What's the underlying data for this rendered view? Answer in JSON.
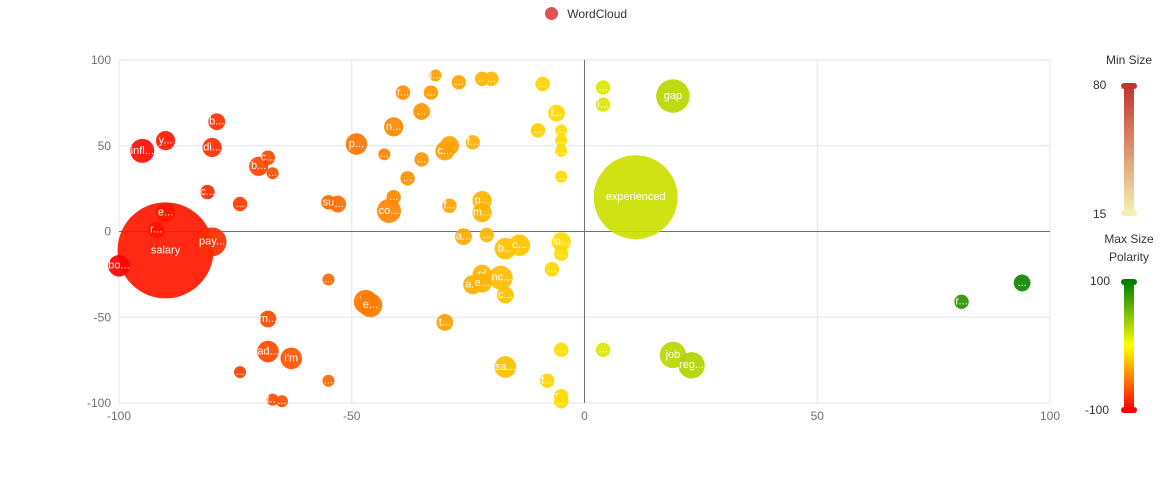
{
  "legend": {
    "label": "WordCloud",
    "color": "#e05252"
  },
  "visual_map": {
    "size": {
      "title_top": "Min Size",
      "title_bottom": "Max Size",
      "max_label": "80",
      "min_label": "15",
      "color_top": "#c23531",
      "color_bottom": "#f5f0b0"
    },
    "polarity": {
      "title": "Polarity",
      "max_label": "100",
      "min_label": "-100",
      "color_top": "#008000",
      "color_mid": "#ffff00",
      "color_bottom": "#ff0000"
    }
  },
  "chart_data": {
    "type": "scatter",
    "title": "",
    "xlim": [
      -100,
      100
    ],
    "ylim": [
      -100,
      100
    ],
    "x_ticks": [
      "-100",
      "-50",
      "0",
      "50",
      "100"
    ],
    "y_ticks": [
      "100",
      "50",
      "0",
      "-50",
      "-100"
    ],
    "grid": true,
    "legend_position": "top-center",
    "series": [
      {
        "name": "WordCloud",
        "points": [
          {
            "label": "salary",
            "x": -90,
            "y": -11,
            "size": 80
          },
          {
            "label": "experienced",
            "x": 11,
            "y": 20,
            "size": 70
          },
          {
            "label": "gap",
            "x": 19,
            "y": 79,
            "size": 28
          },
          {
            "label": "job",
            "x": 19,
            "y": -72,
            "size": 22
          },
          {
            "label": "reg...",
            "x": 23,
            "y": -78,
            "size": 22
          },
          {
            "label": "pay...",
            "x": -80,
            "y": -6,
            "size": 24
          },
          {
            "label": "infl...",
            "x": -95,
            "y": 47,
            "size": 20
          },
          {
            "label": "y...",
            "x": -90,
            "y": 53,
            "size": 16
          },
          {
            "label": "b...",
            "x": -79,
            "y": 64,
            "size": 14
          },
          {
            "label": "di...",
            "x": -80,
            "y": 49,
            "size": 16
          },
          {
            "label": "c...",
            "x": -68,
            "y": 43,
            "size": 12
          },
          {
            "label": "b...",
            "x": -70,
            "y": 38,
            "size": 16
          },
          {
            "label": "...",
            "x": -67,
            "y": 34,
            "size": 10
          },
          {
            "label": "c...",
            "x": -81,
            "y": 23,
            "size": 12
          },
          {
            "label": "...",
            "x": -74,
            "y": 16,
            "size": 12
          },
          {
            "label": "e...",
            "x": -90,
            "y": 11,
            "size": 16
          },
          {
            "label": "r...",
            "x": -92,
            "y": 1,
            "size": 14
          },
          {
            "label": "bo...",
            "x": -100,
            "y": -20,
            "size": 18
          },
          {
            "label": "m...",
            "x": -68,
            "y": -51,
            "size": 14
          },
          {
            "label": "ad...",
            "x": -68,
            "y": -70,
            "size": 18
          },
          {
            "label": "i'm",
            "x": -63,
            "y": -74,
            "size": 18
          },
          {
            "label": "...",
            "x": -74,
            "y": -82,
            "size": 10
          },
          {
            "label": "t...",
            "x": -67,
            "y": -98,
            "size": 10
          },
          {
            "label": "...",
            "x": -65,
            "y": -99,
            "size": 10
          },
          {
            "label": "...",
            "x": -55,
            "y": -87,
            "size": 10
          },
          {
            "label": "...",
            "x": -55,
            "y": -28,
            "size": 10
          },
          {
            "label": "su",
            "x": -55,
            "y": 17,
            "size": 12
          },
          {
            "label": "t...",
            "x": -53,
            "y": 16,
            "size": 14
          },
          {
            "label": "p...",
            "x": -49,
            "y": 51,
            "size": 18
          },
          {
            "label": "...",
            "x": -43,
            "y": 45,
            "size": 10
          },
          {
            "label": "n...",
            "x": -41,
            "y": 61,
            "size": 16
          },
          {
            "label": "r...",
            "x": -39,
            "y": 81,
            "size": 12
          },
          {
            "label": "i...",
            "x": -32,
            "y": 91,
            "size": 10
          },
          {
            "label": "...",
            "x": -33,
            "y": 81,
            "size": 12
          },
          {
            "label": "...",
            "x": -27,
            "y": 87,
            "size": 12
          },
          {
            "label": "...",
            "x": -22,
            "y": 89,
            "size": 12
          },
          {
            "label": "...",
            "x": -20,
            "y": 89,
            "size": 12
          },
          {
            "label": "...",
            "x": -9,
            "y": 86,
            "size": 12
          },
          {
            "label": "...",
            "x": -35,
            "y": 70,
            "size": 14
          },
          {
            "label": "f...",
            "x": -24,
            "y": 52,
            "size": 12
          },
          {
            "label": "t...",
            "x": -29,
            "y": 50,
            "size": 16
          },
          {
            "label": "c...",
            "x": -30,
            "y": 47,
            "size": 16
          },
          {
            "label": "...",
            "x": -35,
            "y": 42,
            "size": 12
          },
          {
            "label": "...",
            "x": -38,
            "y": 31,
            "size": 12
          },
          {
            "label": "...",
            "x": -41,
            "y": 20,
            "size": 12
          },
          {
            "label": "co...",
            "x": -42,
            "y": 12,
            "size": 20
          },
          {
            "label": "f...",
            "x": -29,
            "y": 15,
            "size": 12
          },
          {
            "label": "g...",
            "x": -22,
            "y": 18,
            "size": 16
          },
          {
            "label": "m...",
            "x": -22,
            "y": 11,
            "size": 16
          },
          {
            "label": "a...",
            "x": -26,
            "y": -3,
            "size": 14
          },
          {
            "label": "...",
            "x": -21,
            "y": -2,
            "size": 12
          },
          {
            "label": "b...",
            "x": -17,
            "y": -10,
            "size": 18
          },
          {
            "label": "c...",
            "x": -14,
            "y": -8,
            "size": 18
          },
          {
            "label": "pl",
            "x": -22,
            "y": -25,
            "size": 16
          },
          {
            "label": "inc...",
            "x": -18,
            "y": -27,
            "size": 20
          },
          {
            "label": "a...",
            "x": -24,
            "y": -31,
            "size": 16
          },
          {
            "label": "e...",
            "x": -22,
            "y": -30,
            "size": 16
          },
          {
            "label": "c...",
            "x": -17,
            "y": -37,
            "size": 14
          },
          {
            "label": "be",
            "x": -47,
            "y": -41,
            "size": 20
          },
          {
            "label": "e...",
            "x": -46,
            "y": -43,
            "size": 20
          },
          {
            "label": "t...",
            "x": -30,
            "y": -53,
            "size": 14
          },
          {
            "label": "sa...",
            "x": -17,
            "y": -79,
            "size": 18
          },
          {
            "label": "t...",
            "x": -8,
            "y": -87,
            "size": 12
          },
          {
            "label": "I...",
            "x": -6,
            "y": 69,
            "size": 14
          },
          {
            "label": "...",
            "x": -10,
            "y": 59,
            "size": 12
          },
          {
            "label": "...",
            "x": -5,
            "y": 59,
            "size": 10
          },
          {
            "label": "...",
            "x": -5,
            "y": 53,
            "size": 10
          },
          {
            "label": "...",
            "x": -5,
            "y": 47,
            "size": 10
          },
          {
            "label": "...",
            "x": -5,
            "y": 32,
            "size": 10
          },
          {
            "label": "lo...",
            "x": -5,
            "y": -6,
            "size": 16
          },
          {
            "label": "...",
            "x": -5,
            "y": -13,
            "size": 12
          },
          {
            "label": "...",
            "x": -7,
            "y": -22,
            "size": 12
          },
          {
            "label": "...",
            "x": -5,
            "y": -69,
            "size": 12
          },
          {
            "label": "r...",
            "x": -5,
            "y": -96,
            "size": 12
          },
          {
            "label": "...",
            "x": -5,
            "y": -99,
            "size": 12
          },
          {
            "label": "...",
            "x": 4,
            "y": 84,
            "size": 12
          },
          {
            "label": "i...",
            "x": 4,
            "y": 74,
            "size": 12
          },
          {
            "label": "...",
            "x": 4,
            "y": -69,
            "size": 12
          },
          {
            "label": "r...",
            "x": 81,
            "y": -41,
            "size": 12
          },
          {
            "label": "...",
            "x": 94,
            "y": -30,
            "size": 14
          }
        ]
      }
    ]
  }
}
